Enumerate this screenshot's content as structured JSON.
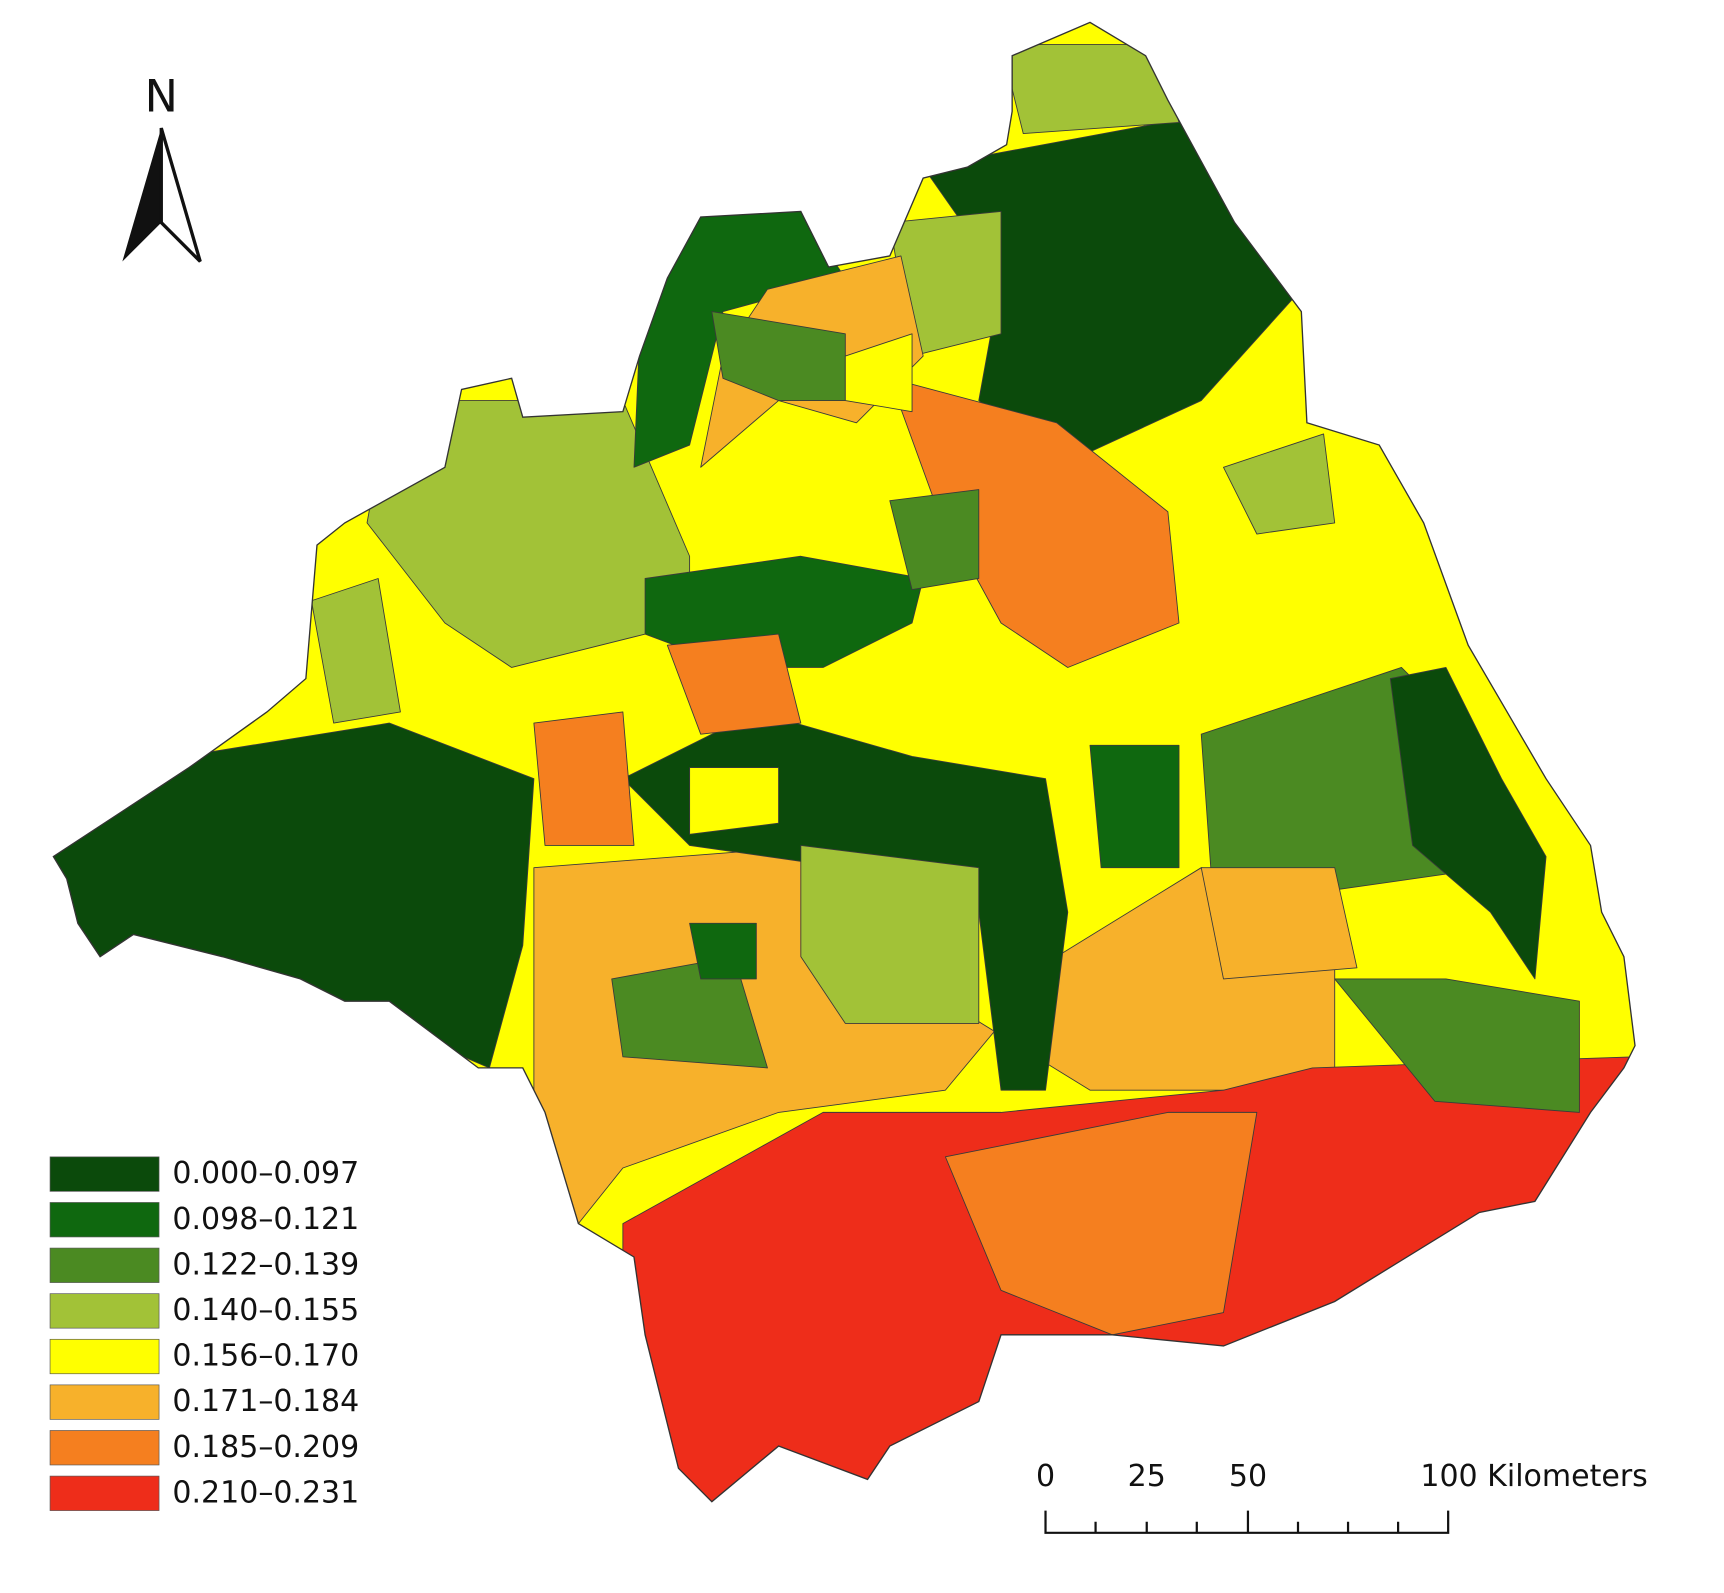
{
  "north_label": "N",
  "legend": [
    {
      "label": "0.000–0.097",
      "color": "#0b4a0b"
    },
    {
      "label": "0.098–0.121",
      "color": "#0f680f"
    },
    {
      "label": "0.122–0.139",
      "color": "#4b8a22"
    },
    {
      "label": "0.140–0.155",
      "color": "#a2c237"
    },
    {
      "label": "0.156–0.170",
      "color": "#ffff00"
    },
    {
      "label": "0.171–0.184",
      "color": "#f7b12b"
    },
    {
      "label": "0.185–0.209",
      "color": "#f57f1f"
    },
    {
      "label": "0.210–0.231",
      "color": "#ee2d1a"
    }
  ],
  "scale_bar": {
    "labels": [
      "0",
      "25",
      "50",
      "100 Kilometers"
    ]
  }
}
